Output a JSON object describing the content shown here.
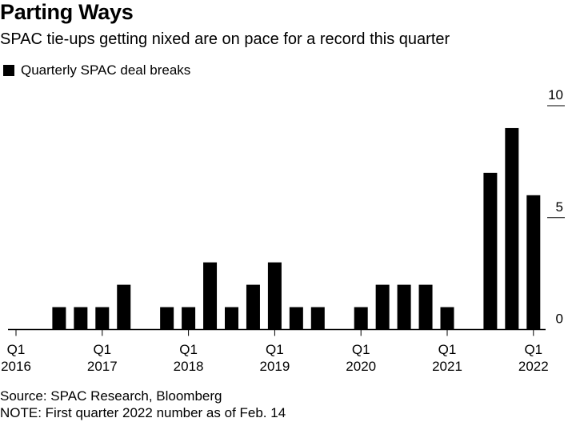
{
  "title": "Parting Ways",
  "subtitle": "SPAC tie-ups getting nixed are on pace for a record this quarter",
  "source": "Source: SPAC Research, Bloomberg",
  "note": "NOTE: First quarter 2022 number as of Feb. 14",
  "chart_data": {
    "type": "bar",
    "series": [
      {
        "name": "Quarterly SPAC deal breaks",
        "values": [
          0,
          0,
          1,
          1,
          1,
          2,
          0,
          1,
          1,
          3,
          1,
          2,
          3,
          1,
          1,
          0,
          1,
          2,
          2,
          2,
          1,
          0,
          7,
          9,
          6
        ]
      }
    ],
    "categories": [
      "Q1 2016",
      "Q2 2016",
      "Q3 2016",
      "Q4 2016",
      "Q1 2017",
      "Q2 2017",
      "Q3 2017",
      "Q4 2017",
      "Q1 2018",
      "Q2 2018",
      "Q3 2018",
      "Q4 2018",
      "Q1 2019",
      "Q2 2019",
      "Q3 2019",
      "Q4 2019",
      "Q1 2020",
      "Q2 2020",
      "Q3 2020",
      "Q4 2020",
      "Q1 2021",
      "Q2 2021",
      "Q3 2021",
      "Q4 2021",
      "Q1 2022"
    ],
    "x_ticks": [
      {
        "index": 0,
        "line1": "Q1",
        "line2": "2016"
      },
      {
        "index": 4,
        "line1": "Q1",
        "line2": "2017"
      },
      {
        "index": 8,
        "line1": "Q1",
        "line2": "2018"
      },
      {
        "index": 12,
        "line1": "Q1",
        "line2": "2019"
      },
      {
        "index": 16,
        "line1": "Q1",
        "line2": "2020"
      },
      {
        "index": 20,
        "line1": "Q1",
        "line2": "2021"
      },
      {
        "index": 24,
        "line1": "Q1",
        "line2": "2022"
      }
    ],
    "y_ticks": [
      0,
      5,
      10
    ],
    "ylim": [
      0,
      10
    ],
    "y_axis_side": "right",
    "grid": false,
    "legend_position": "top-left",
    "bar_color": "#000000"
  }
}
